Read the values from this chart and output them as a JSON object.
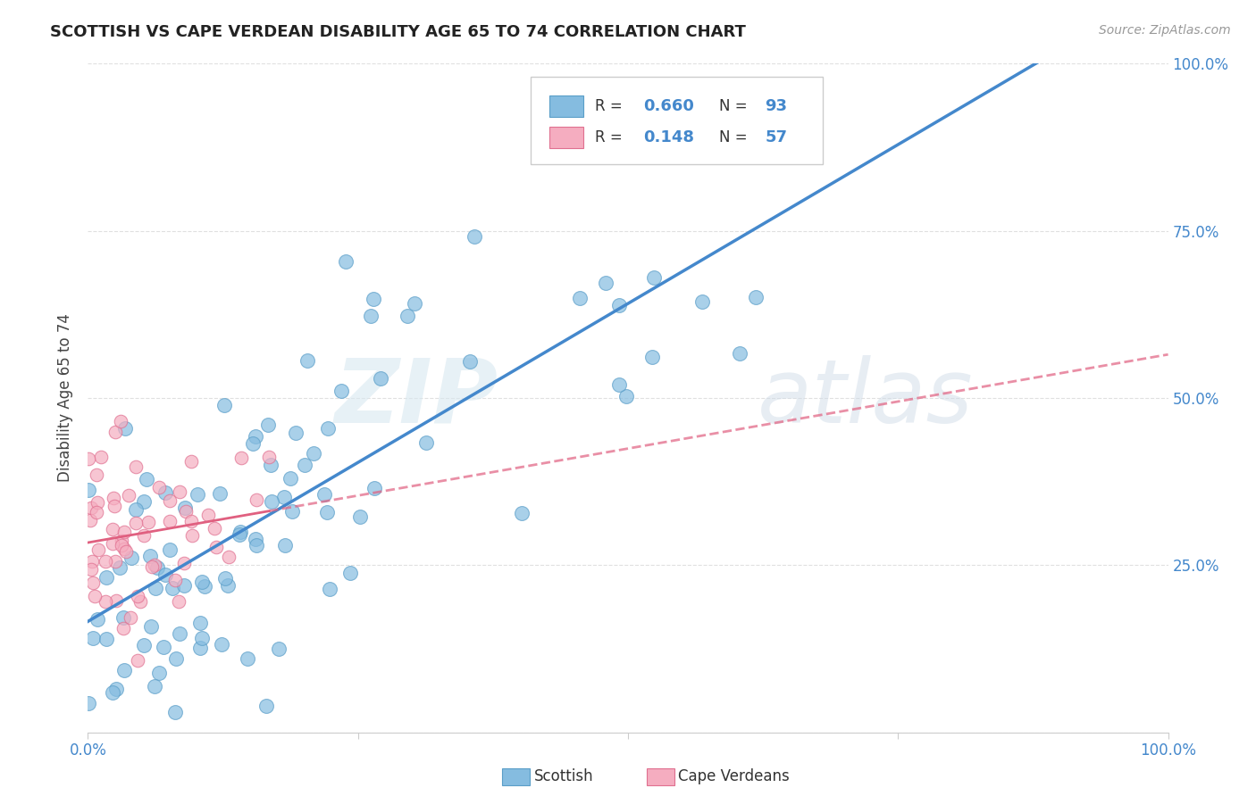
{
  "title": "SCOTTISH VS CAPE VERDEAN DISABILITY AGE 65 TO 74 CORRELATION CHART",
  "source_text": "Source: ZipAtlas.com",
  "ylabel": "Disability Age 65 to 74",
  "scottish_color": "#85bce0",
  "cape_color": "#f5adc0",
  "scottish_edge": "#5a9ec8",
  "cape_edge": "#e07090",
  "blue_line_color": "#4488cc",
  "pink_line_color": "#e06080",
  "R_scottish": 0.66,
  "R_cape": 0.148,
  "N_scottish": 93,
  "N_cape": 57,
  "background_color": "#ffffff",
  "grid_color": "#e0e0e0",
  "title_color": "#222222",
  "axis_label_color": "#4488cc",
  "blue_line_intercept": 0.18,
  "blue_line_slope": 0.83,
  "pink_line_intercept": 0.285,
  "pink_line_slope": 0.22
}
